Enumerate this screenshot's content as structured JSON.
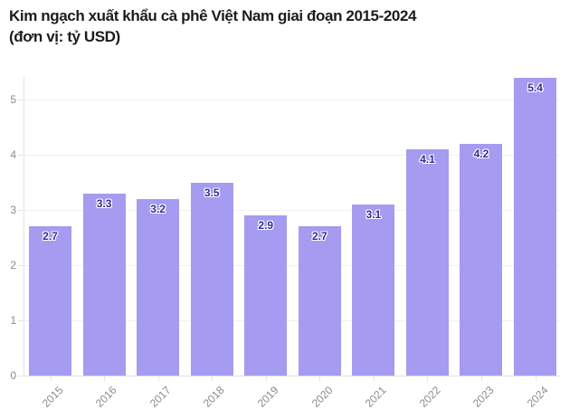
{
  "title": {
    "lines": [
      "Kim ngạch xuất khẩu cà phê Việt Nam giai đoạn 2015-2024",
      "(đơn vị: tỷ USD)"
    ]
  },
  "chart_data": {
    "type": "bar",
    "title": "Kim ngạch xuất khẩu cà phê Việt Nam giai đoạn 2015-2024 (đơn vị: tỷ USD)",
    "categories": [
      "2015",
      "2016",
      "2017",
      "2018",
      "2019",
      "2020",
      "2021",
      "2022",
      "2023",
      "2024"
    ],
    "values": [
      2.7,
      3.3,
      3.2,
      3.5,
      2.9,
      2.7,
      3.1,
      4.1,
      4.2,
      5.4
    ],
    "data_labels": [
      "2.7",
      "3.3",
      "3.2",
      "3.5",
      "2.9",
      "2.7",
      "3.1",
      "4.1",
      "4.2",
      "5.4"
    ],
    "xlabel": "",
    "ylabel": "",
    "ylim": [
      0,
      5.5
    ],
    "yticks": [
      0,
      1,
      2,
      3,
      4,
      5
    ],
    "grid": true,
    "legend": false,
    "bar_color": "#a59bf0",
    "label_color": "#302c96",
    "axis_text_color": "#8a8a8a",
    "gridline_color": "#f0f0f0",
    "title_color": "#1c1c1c"
  }
}
